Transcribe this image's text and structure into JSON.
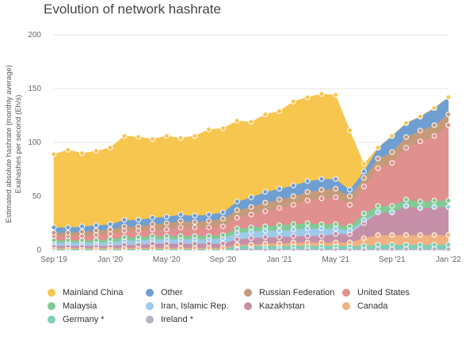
{
  "chart_data": {
    "type": "area",
    "stacked": true,
    "title": "Evolution of network hashrate",
    "ylabel_lines": [
      "Estimated absolute hashrate (monthly average)",
      "Exahashes per second (Eh/s)"
    ],
    "ylim": [
      0,
      200
    ],
    "yticks": [
      0,
      50,
      100,
      150,
      200
    ],
    "grid": true,
    "legend_position": "bottom",
    "x": [
      "2019-09",
      "2019-10",
      "2019-11",
      "2019-12",
      "2020-01",
      "2020-02",
      "2020-03",
      "2020-04",
      "2020-05",
      "2020-06",
      "2020-07",
      "2020-08",
      "2020-09",
      "2020-10",
      "2020-11",
      "2020-12",
      "2021-01",
      "2021-02",
      "2021-03",
      "2021-04",
      "2021-05",
      "2021-06",
      "2021-07",
      "2021-08",
      "2021-09",
      "2021-10",
      "2021-11",
      "2021-12",
      "2022-01"
    ],
    "xtick_labels": [
      {
        "index": 0,
        "label": "Sep '19"
      },
      {
        "index": 4,
        "label": "Jan '20"
      },
      {
        "index": 8,
        "label": "May '20"
      },
      {
        "index": 12,
        "label": "Sep '20"
      },
      {
        "index": 16,
        "label": "Jan '21"
      },
      {
        "index": 20,
        "label": "May '21"
      },
      {
        "index": 24,
        "label": "Sep '21"
      },
      {
        "index": 28,
        "label": "Jan '22"
      }
    ],
    "series": [
      {
        "name": "Ireland *",
        "color": "#b8b1c8",
        "values": [
          0,
          0,
          0,
          0,
          0,
          0,
          0,
          0,
          0,
          0,
          0,
          0,
          0,
          1,
          1,
          1,
          1,
          1,
          1,
          1,
          1,
          1,
          1,
          1,
          1,
          1,
          1,
          1,
          1
        ]
      },
      {
        "name": "Germany *",
        "color": "#7dcfb6",
        "values": [
          1,
          1,
          1,
          1,
          1,
          1,
          1,
          1,
          1,
          1,
          1,
          1,
          1,
          3,
          3,
          3,
          3,
          3,
          3,
          3,
          3,
          3,
          3,
          4,
          4,
          4,
          4,
          4,
          4
        ]
      },
      {
        "name": "Canada",
        "color": "#f0b183",
        "values": [
          1,
          1,
          1,
          1,
          1,
          1,
          1,
          1,
          1,
          1,
          1,
          1,
          1,
          1,
          1,
          2,
          2,
          3,
          3,
          3,
          3,
          3,
          7,
          9,
          9,
          9,
          9,
          9,
          9
        ]
      },
      {
        "name": "Kazakhstan",
        "color": "#c590a7",
        "values": [
          2,
          2,
          2,
          2,
          2,
          3,
          3,
          4,
          4,
          4,
          4,
          4,
          4,
          5,
          6,
          6,
          6,
          6,
          6,
          6,
          8,
          8,
          14,
          21,
          21,
          27,
          25,
          26,
          26
        ]
      },
      {
        "name": "Iran, Islamic Rep.",
        "color": "#9ecae9",
        "values": [
          3,
          3,
          3,
          3,
          3,
          4,
          4,
          4,
          4,
          4,
          4,
          4,
          5,
          6,
          6,
          6,
          6,
          6,
          7,
          7,
          5,
          3,
          3,
          0,
          0,
          0,
          0,
          0,
          0
        ]
      },
      {
        "name": "Malaysia",
        "color": "#82c995",
        "values": [
          2,
          2,
          2,
          2,
          3,
          3,
          3,
          3,
          3,
          3,
          3,
          3,
          3,
          4,
          4,
          4,
          5,
          5,
          5,
          4,
          4,
          4,
          6,
          6,
          6,
          6,
          6,
          6,
          6
        ]
      },
      {
        "name": "United States",
        "color": "#e0908e",
        "values": [
          4,
          4,
          4,
          5,
          5,
          6,
          6,
          6,
          6,
          8,
          8,
          8,
          8,
          10,
          12,
          14,
          16,
          18,
          21,
          24,
          25,
          20,
          25,
          35,
          40,
          48,
          56,
          60,
          70
        ]
      },
      {
        "name": "Russian Federation",
        "color": "#c49a7a",
        "values": [
          3,
          3,
          4,
          4,
          4,
          4,
          4,
          5,
          6,
          6,
          5,
          6,
          7,
          7,
          7,
          8,
          8,
          8,
          8,
          8,
          8,
          8,
          8,
          9,
          10,
          10,
          10,
          10,
          10
        ]
      },
      {
        "name": "Other",
        "color": "#6f9fd1",
        "values": [
          5,
          5,
          5,
          5,
          5,
          6,
          6,
          6,
          6,
          6,
          6,
          6,
          6,
          8,
          9,
          10,
          10,
          10,
          10,
          10,
          9,
          6,
          6,
          10,
          15,
          13,
          13,
          16,
          16
        ]
      },
      {
        "name": "Mainland China",
        "color": "#f7c64f",
        "values": [
          68,
          72,
          68,
          69,
          71,
          78,
          77,
          73,
          75,
          71,
          74,
          79,
          78,
          75,
          70,
          72,
          72,
          78,
          78,
          79,
          78,
          55,
          7,
          0,
          0,
          0,
          0,
          0,
          0
        ]
      }
    ]
  },
  "legend_order": [
    "Mainland China",
    "Other",
    "Russian Federation",
    "United States",
    "Malaysia",
    "Iran, Islamic Rep.",
    "Kazakhstan",
    "Canada",
    "Germany *",
    "Ireland *"
  ]
}
